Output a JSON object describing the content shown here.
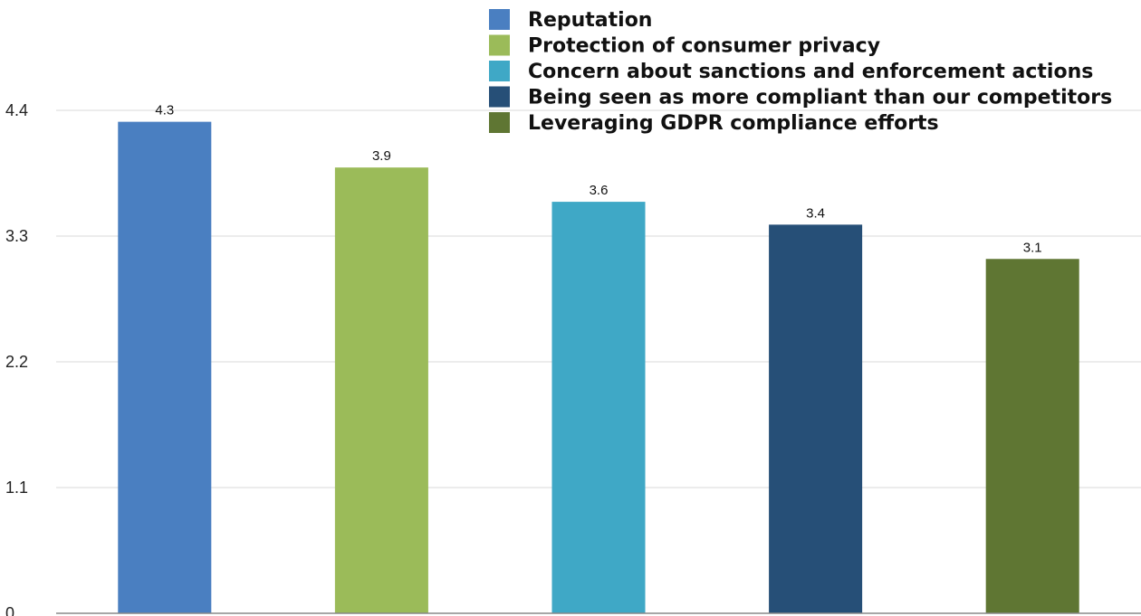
{
  "chart_data": {
    "type": "bar",
    "categories": [
      "Reputation",
      "Protection of consumer privacy",
      "Concern about sanctions and enforcement actions",
      "Being seen as more compliant than our competitors",
      "Leveraging GDPR compliance efforts"
    ],
    "values": [
      4.3,
      3.9,
      3.6,
      3.4,
      3.1
    ],
    "value_labels": [
      "4.3",
      "3.9",
      "3.6",
      "3.4",
      "3.1"
    ],
    "colors": [
      "#4a7fc1",
      "#9bbb59",
      "#3fa8c6",
      "#264f77",
      "#5f7633"
    ],
    "ylim": [
      0,
      4.4
    ],
    "y_ticks": [
      "0",
      "1.1",
      "2.2",
      "3.3",
      "4.4"
    ],
    "title": "",
    "xlabel": "",
    "ylabel": "",
    "grid": true,
    "legend_position": "top-right"
  }
}
